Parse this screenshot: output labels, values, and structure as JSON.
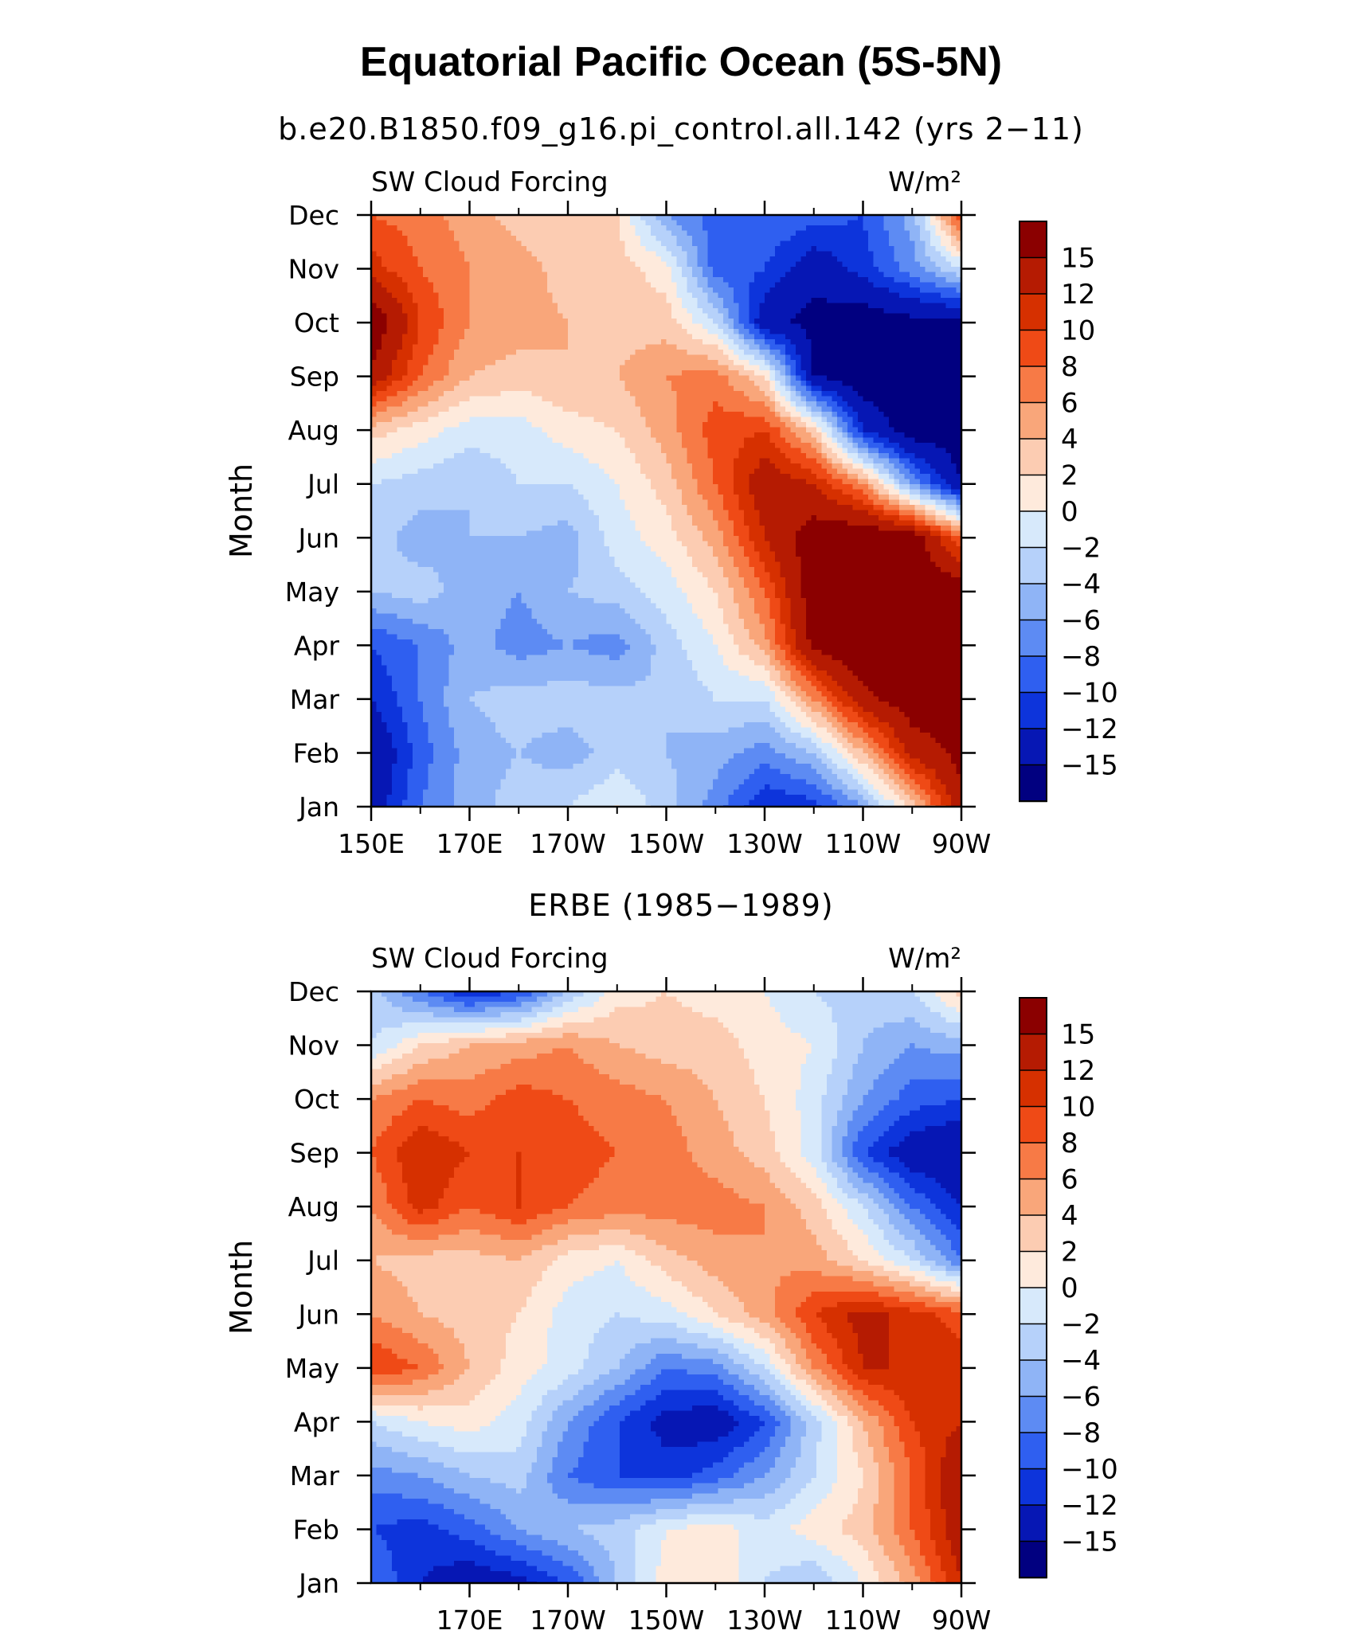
{
  "title": "Equatorial Pacific Ocean (5S-5N)",
  "panel_titles": [
    "b.e20.B1850.f09_g16.pi_control.all.142 (yrs 2−11)",
    "ERBE (1985−1989)"
  ],
  "colorbar_labels": [
    "15",
    "12",
    "10",
    "8",
    "6",
    "4",
    "2",
    "0",
    "−2",
    "−4",
    "−6",
    "−8",
    "−10",
    "−12",
    "−15"
  ],
  "colorbar_colors": [
    "#8b0000",
    "#b51b02",
    "#d63000",
    "#ef4a16",
    "#f77a46",
    "#f9a67a",
    "#fcccb2",
    "#feeadc",
    "#d7e9fb",
    "#b6d1fa",
    "#8fb4f6",
    "#5d8bf3",
    "#2f5ff0",
    "#0d34db",
    "#0617b4",
    "#010080"
  ],
  "chart_data": [
    {
      "type": "heatmap",
      "variable": "SW Cloud Forcing",
      "units": "W/m²",
      "ylabel": "Month",
      "xticks": [
        "150E",
        "170E",
        "170W",
        "150W",
        "130W",
        "110W",
        "90W"
      ],
      "yticks": [
        "Jan",
        "Feb",
        "Mar",
        "Apr",
        "May",
        "Jun",
        "Jul",
        "Aug",
        "Sep",
        "Oct",
        "Nov",
        "Dec"
      ],
      "levels": [
        -15,
        -12,
        -10,
        -8,
        -6,
        -4,
        -2,
        0,
        2,
        4,
        6,
        8,
        10,
        12,
        15
      ],
      "x": [
        150,
        160,
        170,
        180,
        190,
        200,
        210,
        220,
        230,
        240,
        250,
        260,
        270
      ],
      "y": [
        "Jan",
        "Feb",
        "Mar",
        "Apr",
        "May",
        "Jun",
        "Jul",
        "Aug",
        "Sep",
        "Oct",
        "Nov",
        "Dec"
      ],
      "z": [
        [
          -14,
          -8,
          -5,
          -3,
          -2,
          0,
          -3,
          -7,
          -12,
          -11,
          -6,
          3,
          14
        ],
        [
          -15,
          -9,
          -5,
          -4,
          -5,
          -3,
          -4,
          -5,
          -7,
          -4,
          4,
          13,
          16
        ],
        [
          -12,
          -8,
          -4,
          -3,
          -3,
          -3,
          -4,
          -2,
          -2,
          6,
          14,
          17,
          17
        ],
        [
          -10,
          -8,
          -5,
          -7,
          -6,
          -7,
          -3,
          0,
          5,
          16,
          18,
          17,
          17
        ],
        [
          -4,
          -3,
          -5,
          -6,
          -4,
          -3,
          -1,
          2,
          8,
          17,
          19,
          18,
          17
        ],
        [
          -3,
          -5,
          -4,
          -4,
          -5,
          -1,
          1,
          5,
          12,
          17,
          18,
          17,
          8
        ],
        [
          -2,
          -3,
          -4,
          -2,
          -2,
          0,
          3,
          8,
          14,
          12,
          6,
          -6,
          -15
        ],
        [
          3,
          1,
          -1,
          -1,
          1,
          2,
          5,
          9,
          10,
          3,
          -12,
          -17,
          -17
        ],
        [
          14,
          8,
          4,
          3,
          4,
          4,
          6,
          7,
          2,
          -15,
          -17,
          -17,
          -17
        ],
        [
          18,
          10,
          6,
          5,
          4,
          3,
          3,
          -2,
          -14,
          -16,
          -17,
          -16,
          -16
        ],
        [
          11,
          8,
          6,
          5,
          3,
          3,
          1,
          -9,
          -10,
          -14,
          -11,
          -7,
          -2
        ],
        [
          8,
          7,
          5,
          3,
          3,
          2,
          -6,
          -9,
          -8,
          -9,
          -10,
          -5,
          10
        ]
      ]
    },
    {
      "type": "heatmap",
      "variable": "SW Cloud Forcing",
      "units": "W/m²",
      "ylabel": "Month",
      "xticks": [
        "170E",
        "170W",
        "150W",
        "130W",
        "110W",
        "90W"
      ],
      "yticks": [
        "Jan",
        "Feb",
        "Mar",
        "Apr",
        "May",
        "Jun",
        "Jul",
        "Aug",
        "Sep",
        "Oct",
        "Nov",
        "Dec"
      ],
      "levels": [
        -15,
        -12,
        -10,
        -8,
        -6,
        -4,
        -2,
        0,
        2,
        4,
        6,
        8,
        10,
        12,
        15
      ],
      "x": [
        150,
        160,
        170,
        180,
        190,
        200,
        210,
        220,
        230,
        240,
        250,
        260,
        270
      ],
      "y": [
        "Jan",
        "Feb",
        "Mar",
        "Apr",
        "May",
        "Jun",
        "Jul",
        "Aug",
        "Sep",
        "Oct",
        "Nov",
        "Dec"
      ],
      "z": [
        [
          -8,
          -12,
          -14,
          -13,
          -10,
          -4,
          1,
          2,
          -2,
          -4,
          0,
          5,
          12
        ],
        [
          -10,
          -11,
          -9,
          -6,
          -4,
          -3,
          0,
          1,
          -1,
          1,
          3,
          8,
          14
        ],
        [
          -7,
          -6,
          -4,
          -3,
          -8,
          -10,
          -11,
          -9,
          -6,
          -2,
          2,
          8,
          15
        ],
        [
          -2,
          0,
          1,
          -1,
          -6,
          -10,
          -13,
          -14,
          -10,
          -3,
          4,
          10,
          12
        ],
        [
          10,
          8,
          4,
          1,
          -1,
          -4,
          -8,
          -7,
          -2,
          6,
          12,
          12,
          11
        ],
        [
          6,
          4,
          3,
          2,
          -1,
          -2,
          -1,
          2,
          5,
          10,
          13,
          11,
          9
        ],
        [
          4,
          3,
          3,
          4,
          1,
          0,
          3,
          5,
          6,
          5,
          2,
          -2,
          -8
        ],
        [
          6,
          11,
          8,
          10,
          8,
          7,
          7,
          7,
          6,
          3,
          -2,
          -8,
          -12
        ],
        [
          8,
          12,
          10,
          10,
          9,
          8,
          7,
          5,
          3,
          -1,
          -10,
          -14,
          -15
        ],
        [
          6,
          8,
          7,
          9,
          8,
          7,
          6,
          4,
          2,
          -1,
          -6,
          -9,
          -10
        ],
        [
          -2,
          2,
          4,
          5,
          6,
          4,
          3,
          3,
          1,
          0,
          -4,
          -6,
          -5
        ],
        [
          -3,
          -8,
          -12,
          -10,
          -4,
          1,
          2,
          1,
          0,
          -2,
          -3,
          -2,
          3
        ]
      ]
    }
  ]
}
